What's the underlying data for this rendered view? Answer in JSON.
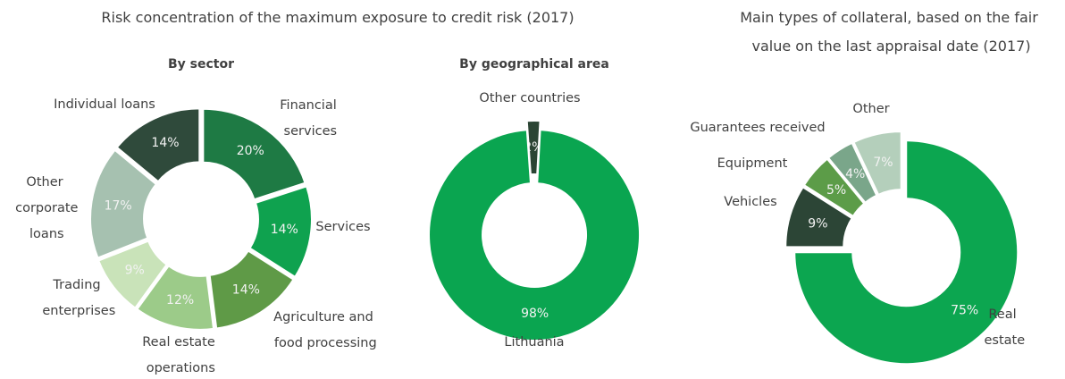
{
  "chart_data": [
    {
      "type": "pie",
      "title": "Risk concentration of the maximum exposure to credit risk (2017)",
      "subtitle": "By sector",
      "categories": [
        "Financial services",
        "Services",
        "Agriculture and food processing",
        "Real estate operations",
        "Trading enterprises",
        "Other corporate loans",
        "Individual loans"
      ],
      "values": [
        20,
        14,
        14,
        12,
        9,
        17,
        14
      ],
      "value_labels": [
        "20%",
        "14%",
        "14%",
        "12%",
        "9%",
        "17%",
        "14%"
      ],
      "colors": [
        "#1e7a44",
        "#0fa24f",
        "#5f9a47",
        "#9ccb89",
        "#c9e3b9",
        "#a6c1b0",
        "#2f4a3b"
      ]
    },
    {
      "type": "pie",
      "subtitle": "By geographical area",
      "categories": [
        "Other countries",
        "Lithuania"
      ],
      "values": [
        2,
        98
      ],
      "value_labels": [
        "2%",
        "98%"
      ],
      "colors": [
        "#2b4534",
        "#0aa550"
      ]
    },
    {
      "type": "pie",
      "title": "Main types of collateral, based on the fair value on the last appraisal date (2017)",
      "categories": [
        "Real estate",
        "Vehicles",
        "Equipment",
        "Guarantees received",
        "Other"
      ],
      "values": [
        75,
        9,
        5,
        4,
        7
      ],
      "value_labels": [
        "75%",
        "9%",
        "5%",
        "4%",
        "7%"
      ],
      "colors": [
        "#0ca650",
        "#2c4536",
        "#5c9c48",
        "#7aa68a",
        "#b4cfbb"
      ]
    }
  ]
}
